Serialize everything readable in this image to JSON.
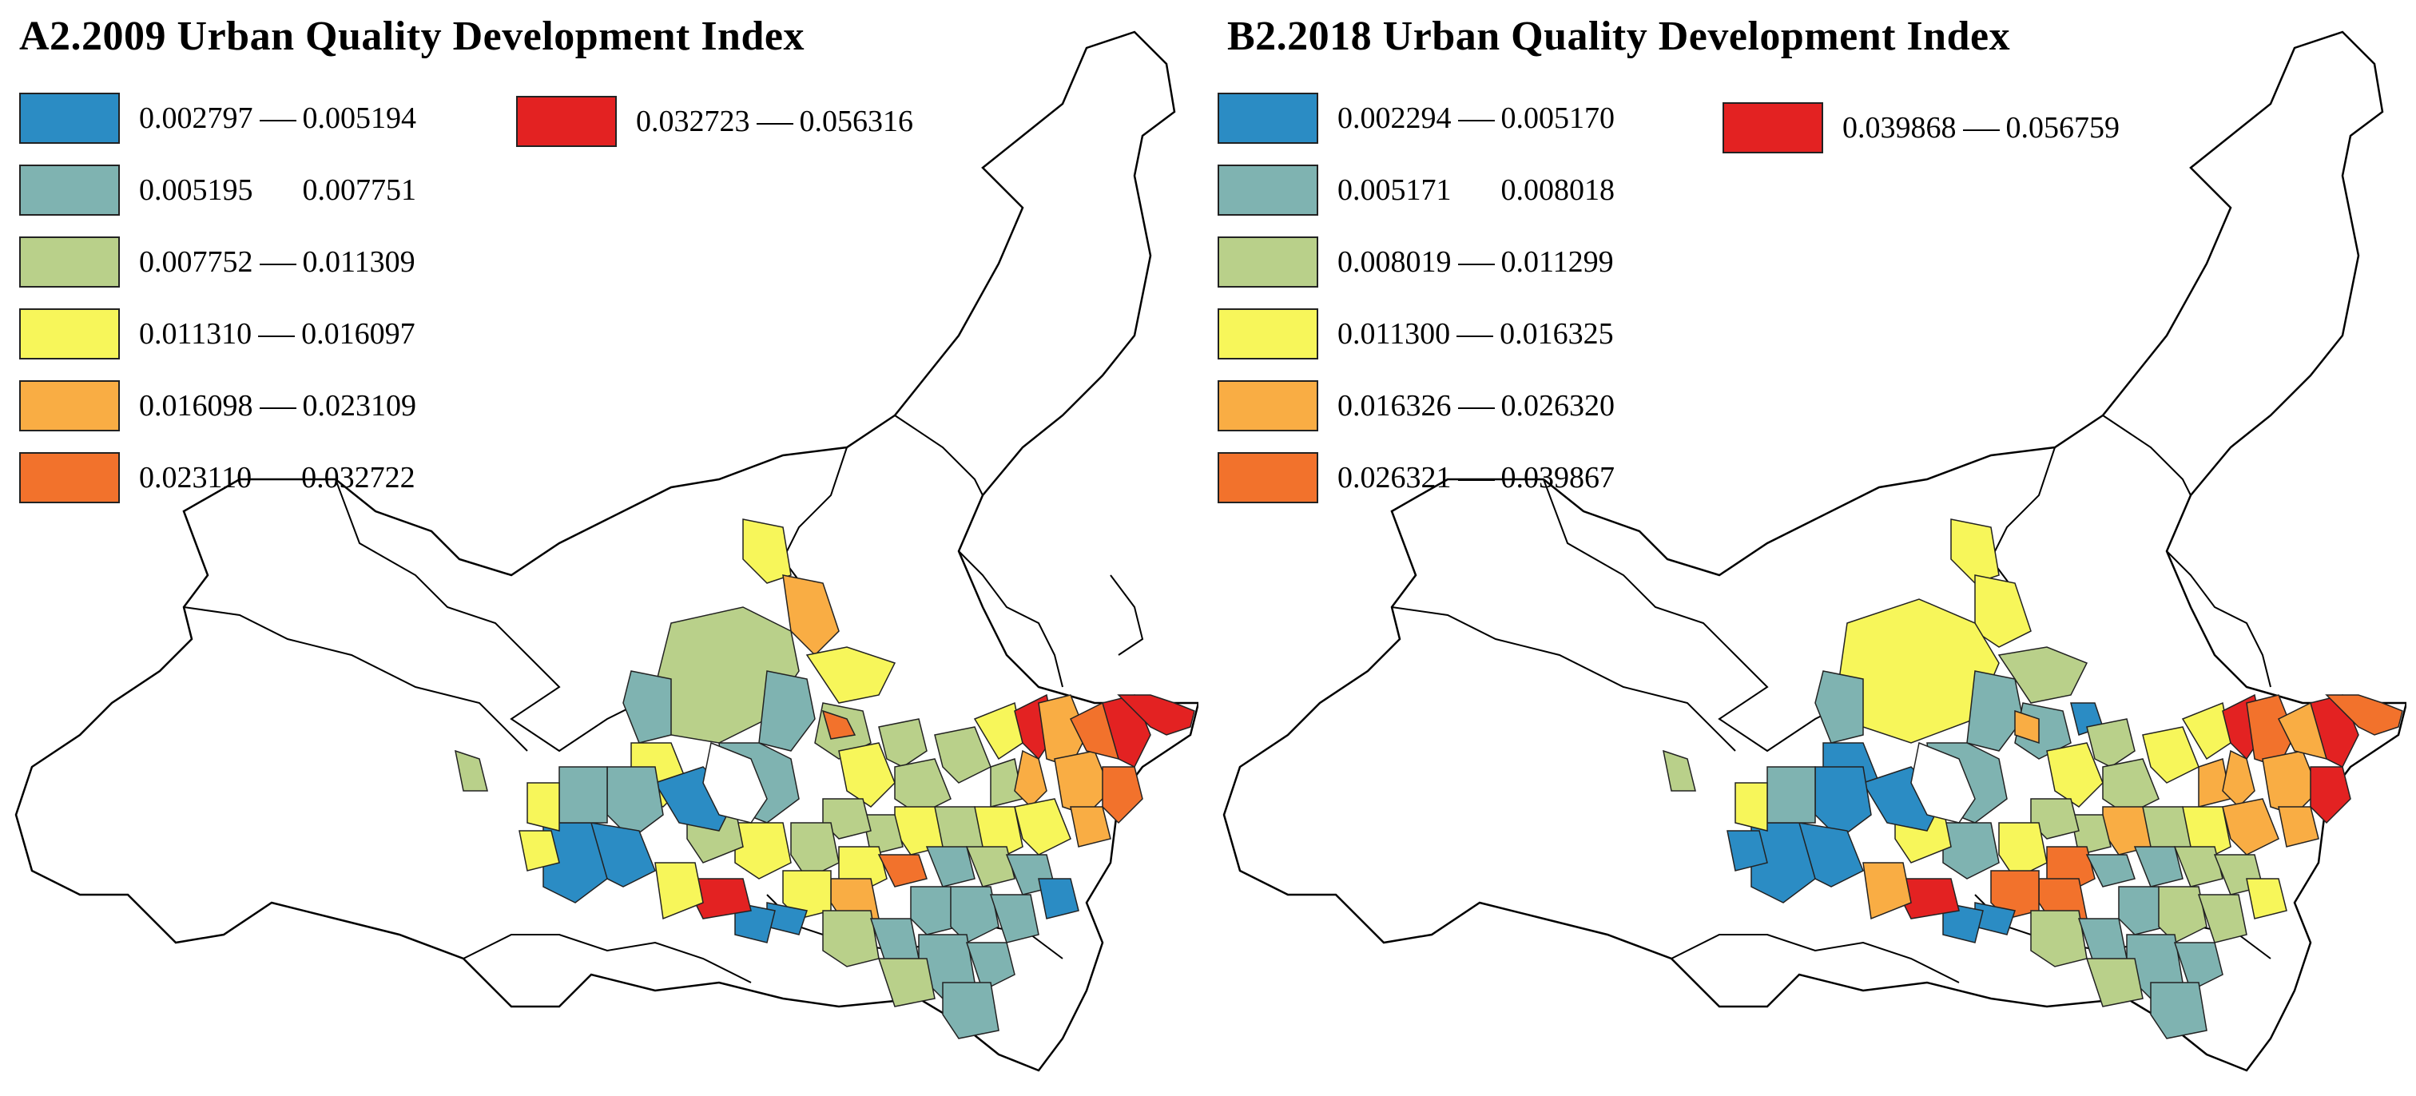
{
  "panels": [
    {
      "id": "a",
      "title": "A2.2009 Urban Quality Development Index",
      "legend": [
        {
          "low": "0.002797",
          "high": "0.005194",
          "color": "#2b8cc4",
          "dash": true
        },
        {
          "low": "0.005195",
          "high": "0.007751",
          "color": "#7fb3b1",
          "dash": false
        },
        {
          "low": "0.007752",
          "high": "0.011309",
          "color": "#b9d08a",
          "dash": true
        },
        {
          "low": "0.011310",
          "high": "0.016097",
          "color": "#f7f65a",
          "dash": true
        },
        {
          "low": "0.016098",
          "high": "0.023109",
          "color": "#f9ad44",
          "dash": true
        },
        {
          "low": "0.023110",
          "high": "0.032722",
          "color": "#f2722c",
          "dash": false
        },
        {
          "low": "0.032723",
          "high": "0.056316",
          "color": "#e32222",
          "dash": true
        }
      ]
    },
    {
      "id": "b",
      "title": "B2.2018 Urban Quality Development Index",
      "legend": [
        {
          "low": "0.002294",
          "high": "0.005170",
          "color": "#2b8cc4",
          "dash": true
        },
        {
          "low": "0.005171",
          "high": "0.008018",
          "color": "#7fb3b1",
          "dash": false
        },
        {
          "low": "0.008019",
          "high": "0.011299",
          "color": "#b9d08a",
          "dash": true
        },
        {
          "low": "0.011300",
          "high": "0.016325",
          "color": "#f7f65a",
          "dash": true
        },
        {
          "low": "0.016326",
          "high": "0.026320",
          "color": "#f9ad44",
          "dash": true
        },
        {
          "low": "0.026321",
          "high": "0.039867",
          "color": "#f2722c",
          "dash": true
        },
        {
          "low": "0.039868",
          "high": "0.056759",
          "color": "#e32222",
          "dash": true
        }
      ]
    }
  ]
}
